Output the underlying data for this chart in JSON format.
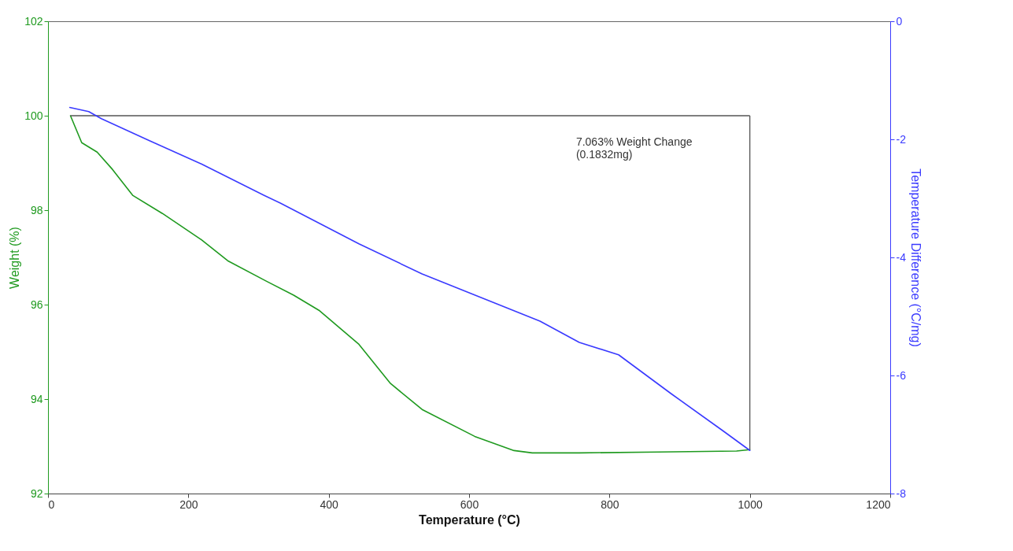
{
  "chart_data": {
    "type": "line",
    "xlabel": "Temperature (°C)",
    "ylabel": "Weight (%)",
    "y2label": "Temperature Difference (°C/mg)",
    "xlim": [
      0,
      1200
    ],
    "xticks": [
      0,
      200,
      400,
      600,
      800,
      1000,
      1200
    ],
    "ylim": [
      92,
      102
    ],
    "yticks": [
      92,
      94,
      96,
      98,
      100,
      102
    ],
    "y2lim": [
      -8,
      0
    ],
    "y2ticks": [
      -8,
      -6,
      -4,
      -2,
      0
    ],
    "series": [
      {
        "color": "#1f9a1f",
        "axis": "y",
        "x": [
          32,
          48,
          70,
          92,
          121,
          163,
          219,
          256,
          312,
          350,
          387,
          443,
          488,
          533,
          608,
          664,
          690,
          757,
          869,
          981,
          1000
        ],
        "values": [
          100,
          99.43,
          99.23,
          98.86,
          98.31,
          97.93,
          97.37,
          96.93,
          96.49,
          96.2,
          95.87,
          95.16,
          94.33,
          93.78,
          93.21,
          92.91,
          92.86,
          92.86,
          92.88,
          92.9,
          92.93
        ]
      },
      {
        "color": "#3a3aff",
        "axis": "y2",
        "x": [
          31,
          58,
          76,
          144,
          219,
          308,
          331,
          443,
          533,
          701,
          757,
          813,
          888,
          962,
          1000
        ],
        "values": [
          -1.46,
          -1.53,
          -1.65,
          -2.02,
          -2.42,
          -2.95,
          -3.08,
          -3.77,
          -4.28,
          -5.08,
          -5.44,
          -5.65,
          -6.31,
          -6.94,
          -7.27
        ]
      }
    ],
    "annotations": [
      "7.063% Weight Change\n(0.1832mg)"
    ]
  }
}
